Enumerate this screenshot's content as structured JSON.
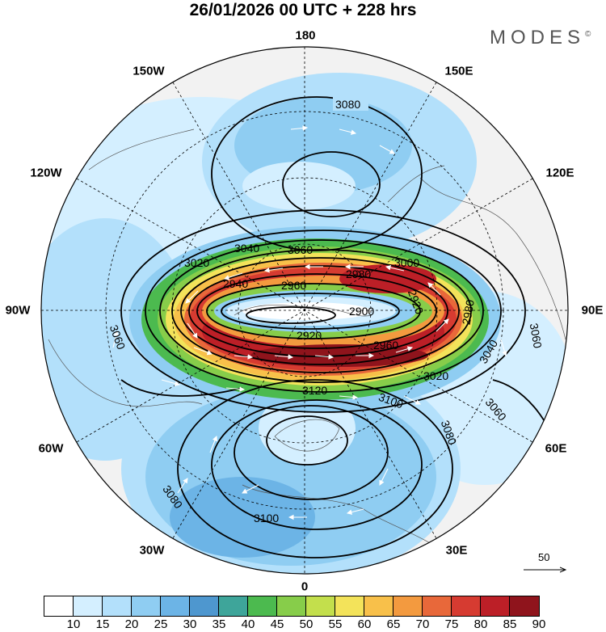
{
  "title": "26/01/2026  00 UTC  + 228 hrs",
  "brand": "MODES",
  "brand_mark": "©",
  "longitude_labels": {
    "top": "180",
    "bottom": "0",
    "left": "90W",
    "right": "90E",
    "upper_left_1": "150W",
    "upper_left_2": "120W",
    "upper_right_1": "150E",
    "upper_right_2": "120E",
    "lower_left_1": "60W",
    "lower_left_2": "30W",
    "lower_right_1": "60E",
    "lower_right_2": "30E"
  },
  "contour_labels": [
    "3080",
    "3040",
    "3060",
    "3020",
    "2940",
    "2960",
    "2980",
    "3000",
    "2900",
    "2920",
    "2920",
    "2960",
    "2980",
    "3040",
    "3060",
    "3060",
    "3020",
    "3120",
    "3100",
    "3080",
    "3060",
    "3080",
    "3100"
  ],
  "wind_vector_scale": "50",
  "colorbar": {
    "colors": [
      "#ffffff",
      "#d4efff",
      "#b3e0fb",
      "#8fcdf2",
      "#6cb4e6",
      "#4e97cf",
      "#3ea59a",
      "#4cba4f",
      "#87cd4a",
      "#c3df4c",
      "#f3e35a",
      "#f8c04a",
      "#f39a3f",
      "#e8683a",
      "#d63b31",
      "#bc1f27",
      "#8f141c"
    ],
    "labels": [
      "10",
      "15",
      "20",
      "25",
      "30",
      "35",
      "40",
      "45",
      "50",
      "55",
      "60",
      "65",
      "70",
      "75",
      "80",
      "85",
      "90"
    ]
  }
}
